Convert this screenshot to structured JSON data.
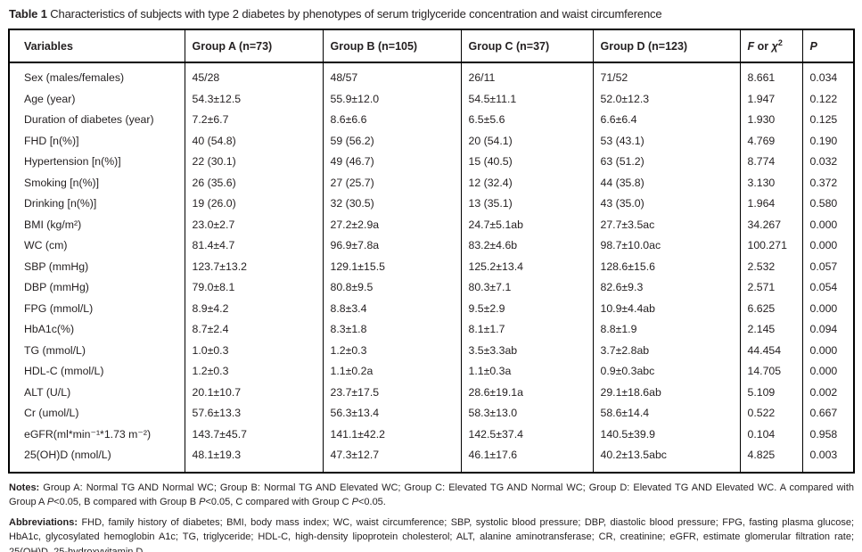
{
  "title": {
    "segments": [
      {
        "text": "Table 1 ",
        "style": "bold"
      },
      {
        "text": "Characteristics of subjects with type 2 diabetes by phenotypes of serum triglyceride concentration and waist circumference",
        "style": "normal"
      }
    ]
  },
  "table": {
    "header": {
      "variables": "Variables",
      "group_a": "Group A (n=73)",
      "group_b": "Group B (n=105)",
      "group_c": "Group C (n=37)",
      "group_d": "Group D (n=123)",
      "f_stat": {
        "f": "F",
        "or": " or ",
        "chi": "χ",
        "sup": "2"
      },
      "p": "P"
    },
    "rows": [
      {
        "label": "Sex (males/females)",
        "values": [
          "45/28",
          "48/57",
          "26/11",
          "71/52",
          "8.661",
          "0.034"
        ]
      },
      {
        "label": "Age (year)",
        "values": [
          "54.3±12.5",
          "55.9±12.0",
          "54.5±11.1",
          "52.0±12.3",
          "1.947",
          "0.122"
        ]
      },
      {
        "label": "Duration of diabetes (year)",
        "values": [
          "7.2±6.7",
          "8.6±6.6",
          "6.5±5.6",
          "6.6±6.4",
          "1.930",
          "0.125"
        ]
      },
      {
        "label": "FHD [n(%)]",
        "values": [
          "40 (54.8)",
          "59 (56.2)",
          "20 (54.1)",
          "53 (43.1)",
          "4.769",
          "0.190"
        ]
      },
      {
        "label": "Hypertension [n(%)]",
        "values": [
          "22 (30.1)",
          "49 (46.7)",
          "15 (40.5)",
          "63 (51.2)",
          "8.774",
          "0.032"
        ]
      },
      {
        "label": "Smoking [n(%)]",
        "values": [
          "26 (35.6)",
          "27 (25.7)",
          "12 (32.4)",
          "44 (35.8)",
          "3.130",
          "0.372"
        ]
      },
      {
        "label": "Drinking [n(%)]",
        "values": [
          "19 (26.0)",
          "32 (30.5)",
          "13 (35.1)",
          "43 (35.0)",
          "1.964",
          "0.580"
        ]
      },
      {
        "label": "BMI (kg/m²)",
        "values": [
          "23.0±2.7",
          "27.2±2.9a",
          "24.7±5.1ab",
          "27.7±3.5ac",
          "34.267",
          "0.000"
        ]
      },
      {
        "label": "WC (cm)",
        "values": [
          "81.4±4.7",
          "96.9±7.8a",
          "83.2±4.6b",
          "98.7±10.0ac",
          "100.271",
          "0.000"
        ]
      },
      {
        "label": "SBP (mmHg)",
        "values": [
          "123.7±13.2",
          "129.1±15.5",
          "125.2±13.4",
          "128.6±15.6",
          "2.532",
          "0.057"
        ]
      },
      {
        "label": "DBP (mmHg)",
        "values": [
          "79.0±8.1",
          "80.8±9.5",
          "80.3±7.1",
          "82.6±9.3",
          "2.571",
          "0.054"
        ]
      },
      {
        "label": "FPG (mmol/L)",
        "values": [
          "8.9±4.2",
          "8.8±3.4",
          "9.5±2.9",
          "10.9±4.4ab",
          "6.625",
          "0.000"
        ]
      },
      {
        "label": "HbA1c(%)",
        "values": [
          "8.7±2.4",
          "8.3±1.8",
          "8.1±1.7",
          "8.8±1.9",
          "2.145",
          "0.094"
        ]
      },
      {
        "label": "TG (mmol/L)",
        "values": [
          "1.0±0.3",
          "1.2±0.3",
          "3.5±3.3ab",
          "3.7±2.8ab",
          "44.454",
          "0.000"
        ]
      },
      {
        "label": "HDL-C (mmol/L)",
        "values": [
          "1.2±0.3",
          "1.1±0.2a",
          "1.1±0.3a",
          "0.9±0.3abc",
          "14.705",
          "0.000"
        ]
      },
      {
        "label": "ALT (U/L)",
        "values": [
          "20.1±10.7",
          "23.7±17.5",
          "28.6±19.1a",
          "29.1±18.6ab",
          "5.109",
          "0.002"
        ]
      },
      {
        "label": "Cr (umol/L)",
        "values": [
          "57.6±13.3",
          "56.3±13.4",
          "58.3±13.0",
          "58.6±14.4",
          "0.522",
          "0.667"
        ]
      },
      {
        "label": "eGFR(ml*min⁻¹*1.73 m⁻²)",
        "values": [
          "143.7±45.7",
          "141.1±42.2",
          "142.5±37.4",
          "140.5±39.9",
          "0.104",
          "0.958"
        ]
      },
      {
        "label": "25(OH)D (nmol/L)",
        "values": [
          "48.1±19.3",
          "47.3±12.7",
          "46.1±17.6",
          "40.2±13.5abc",
          "4.825",
          "0.003"
        ]
      }
    ]
  },
  "notes": {
    "segments": [
      {
        "text": "Notes: ",
        "style": "bold"
      },
      {
        "text": "Group A: Normal TG AND Normal WC; Group B: Normal TG AND Elevated WC; Group C: Elevated TG AND Normal WC; Group D: Elevated TG AND Elevated WC. A compared with Group A ",
        "style": "normal"
      },
      {
        "text": "P",
        "style": "italic"
      },
      {
        "text": "<0.05, B compared with Group B ",
        "style": "normal"
      },
      {
        "text": "P",
        "style": "italic"
      },
      {
        "text": "<0.05, C compared with Group C ",
        "style": "normal"
      },
      {
        "text": "P",
        "style": "italic"
      },
      {
        "text": "<0.05.",
        "style": "normal"
      }
    ]
  },
  "abbreviations": {
    "segments": [
      {
        "text": "Abbreviations: ",
        "style": "bold"
      },
      {
        "text": "FHD, family history of diabetes; BMI, body mass index; WC, waist circumference; SBP, systolic blood pressure; DBP, diastolic blood pressure; FPG, fasting plasma glucose; HbA1c, glycosylated hemoglobin A1c; TG, triglyceride; HDL-C, high-density lipoprotein cholesterol; ALT, alanine aminotransferase; CR, creatinine; eGFR, estimate glomerular filtration rate; 25(OH)D, 25-hydroxyvitamin D.",
        "style": "normal"
      }
    ]
  },
  "colors": {
    "text": "#231f20",
    "border": "#000000",
    "background": "#ffffff"
  }
}
